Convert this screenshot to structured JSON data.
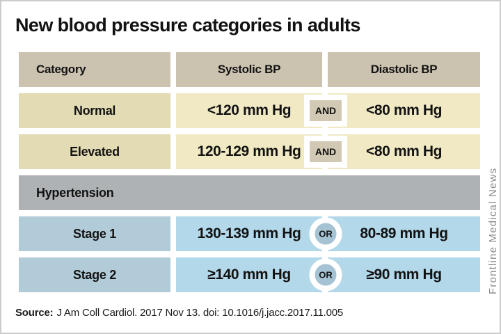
{
  "title": "New blood pressure categories in adults",
  "table": {
    "headers": [
      "Category",
      "Systolic BP",
      "Diastolic BP"
    ],
    "rows": [
      {
        "category": "Normal",
        "systolic": "<120 mm Hg",
        "connector": "AND",
        "diastolic": "<80 mm Hg"
      },
      {
        "category": "Elevated",
        "systolic": "120-129 mm Hg",
        "connector": "AND",
        "diastolic": "<80 mm Hg"
      },
      {
        "category": "Stage 1",
        "systolic": "130-139 mm Hg",
        "connector": "OR",
        "diastolic": "80-89 mm Hg"
      },
      {
        "category": "Stage 2",
        "systolic": "≥140 mm Hg",
        "connector": "OR",
        "diastolic": "≥90 mm Hg"
      }
    ],
    "section_label": "Hypertension"
  },
  "source": {
    "label": "Source:",
    "citation": "J Am Coll Cardiol. 2017 Nov 13. doi: 10.1016/j.jacc.2017.11.005"
  },
  "credit": "Frontline Medical News",
  "colors": {
    "header_tan": "#cbc2b0",
    "category_khaki": "#e2dbb3",
    "value_cream": "#f0e9c3",
    "and_badge": "#d2c9b5",
    "hypertension_gray": "#aeb2b4",
    "stage_category_blue": "#b2cbd8",
    "stage_value_blue": "#b3d8ea",
    "or_badge": "#a6c3d3"
  },
  "chart_data": {
    "type": "table",
    "title": "New blood pressure categories in adults",
    "columns": [
      "Category",
      "Systolic BP",
      "Diastolic BP"
    ],
    "rows": [
      [
        "Normal",
        "<120 mm Hg",
        "AND",
        "<80 mm Hg"
      ],
      [
        "Elevated",
        "120-129 mm Hg",
        "AND",
        "<80 mm Hg"
      ],
      [
        "Hypertension",
        "",
        "",
        ""
      ],
      [
        "Stage 1",
        "130-139 mm Hg",
        "OR",
        "80-89 mm Hg"
      ],
      [
        "Stage 2",
        "≥140 mm Hg",
        "OR",
        "≥90 mm Hg"
      ]
    ],
    "source": "Source: J Am Coll Cardiol. 2017 Nov 13. doi: 10.1016/j.jacc.2017.11.005",
    "credit": "Frontline Medical News",
    "layout_hints": {
      "section_row_spans_full_width": true,
      "connector_badges_between_value_columns": true
    }
  }
}
